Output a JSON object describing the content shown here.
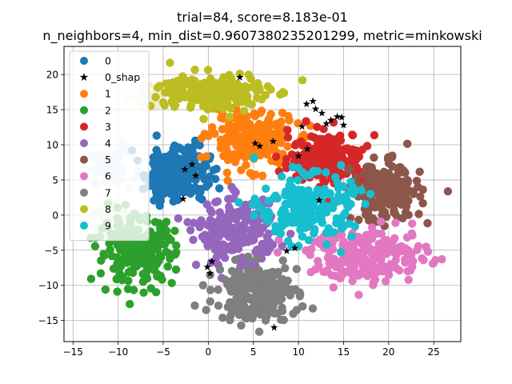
{
  "chart_data": {
    "type": "scatter",
    "title_line1": "trial=84, score=8.183e-01",
    "title_line2": "n_neighbors=4, min_dist=0.9607380235201299, metric=minkowski",
    "xlabel": "",
    "ylabel": "",
    "xlim": [
      -16,
      28
    ],
    "ylim": [
      -18,
      24
    ],
    "xticks": [
      -15,
      -10,
      -5,
      0,
      5,
      10,
      15,
      20,
      25
    ],
    "yticks": [
      -15,
      -10,
      -5,
      0,
      5,
      10,
      15,
      20
    ],
    "grid": true,
    "legend_position": "upper-left",
    "series": [
      {
        "name": "0",
        "marker": "circle",
        "color": "#1f77b4",
        "clusters": [
          {
            "cx": -3.5,
            "cy": 6.0,
            "sx": 2.6,
            "sy": 2.8,
            "n": 230
          }
        ]
      },
      {
        "name": "0_shap",
        "marker": "star",
        "color": "#000000",
        "points": [
          [
            -2.8,
            2.3
          ],
          [
            -2.6,
            6.5
          ],
          [
            -1.8,
            7.2
          ],
          [
            -1.4,
            5.6
          ],
          [
            -0.1,
            -7.4
          ],
          [
            0.2,
            -8.3
          ],
          [
            0.4,
            -6.6
          ],
          [
            3.5,
            19.6
          ],
          [
            5.2,
            10.2
          ],
          [
            5.7,
            9.8
          ],
          [
            7.2,
            10.5
          ],
          [
            7.3,
            -16.0
          ],
          [
            8.7,
            -5.1
          ],
          [
            9.6,
            -4.7
          ],
          [
            10.0,
            8.4
          ],
          [
            10.4,
            12.6
          ],
          [
            10.9,
            15.8
          ],
          [
            11.6,
            16.2
          ],
          [
            11.9,
            15.1
          ],
          [
            12.3,
            2.1
          ],
          [
            12.6,
            14.5
          ],
          [
            13.1,
            13.0
          ],
          [
            13.6,
            13.5
          ],
          [
            14.3,
            14.0
          ],
          [
            14.8,
            13.9
          ],
          [
            11.0,
            9.4
          ],
          [
            15.0,
            12.8
          ]
        ]
      },
      {
        "name": "1",
        "marker": "circle",
        "color": "#ff7f0e",
        "clusters": [
          {
            "cx": 4.8,
            "cy": 10.8,
            "sx": 3.2,
            "sy": 2.8,
            "n": 230
          }
        ]
      },
      {
        "name": "2",
        "marker": "circle",
        "color": "#2ca02c",
        "clusters": [
          {
            "cx": -8.0,
            "cy": -5.0,
            "sx": 3.0,
            "sy": 3.3,
            "n": 240
          }
        ]
      },
      {
        "name": "3",
        "marker": "circle",
        "color": "#d62728",
        "clusters": [
          {
            "cx": 13.2,
            "cy": 8.2,
            "sx": 3.0,
            "sy": 2.6,
            "n": 220
          }
        ]
      },
      {
        "name": "4",
        "marker": "circle",
        "color": "#9467bd",
        "clusters": [
          {
            "cx": 3.2,
            "cy": -2.5,
            "sx": 3.1,
            "sy": 3.3,
            "n": 230
          }
        ]
      },
      {
        "name": "5",
        "marker": "circle",
        "color": "#8c564b",
        "clusters": [
          {
            "cx": 19.8,
            "cy": 3.2,
            "sx": 2.7,
            "sy": 3.0,
            "n": 200
          }
        ]
      },
      {
        "name": "6",
        "marker": "circle",
        "color": "#e377c2",
        "clusters": [
          {
            "cx": 17.8,
            "cy": -5.8,
            "sx": 4.7,
            "sy": 2.7,
            "n": 230
          }
        ]
      },
      {
        "name": "7",
        "marker": "circle",
        "color": "#7f7f7f",
        "clusters": [
          {
            "cx": 5.5,
            "cy": -11.0,
            "sx": 3.2,
            "sy": 2.8,
            "n": 220
          }
        ]
      },
      {
        "name": "8",
        "marker": "circle",
        "color": "#bcbd22",
        "clusters": [
          {
            "cx": 0.5,
            "cy": 17.5,
            "sx": 4.3,
            "sy": 2.0,
            "n": 210
          }
        ]
      },
      {
        "name": "9",
        "marker": "circle",
        "color": "#17becf",
        "clusters": [
          {
            "cx": 11.0,
            "cy": 1.0,
            "sx": 3.6,
            "sy": 3.2,
            "n": 220
          }
        ]
      },
      {
        "name": "",
        "marker": "circle",
        "color": "#d6e6f4",
        "clusters": [
          {
            "cx": -10.8,
            "cy": 6.5,
            "sx": 1.8,
            "sy": 1.8,
            "n": 70
          }
        ]
      },
      {
        "name": "",
        "marker": "circle",
        "color": "#d5ecd5",
        "clusters": [
          {
            "cx": -10.5,
            "cy": -1.2,
            "sx": 1.2,
            "sy": 2.0,
            "n": 40
          }
        ]
      },
      {
        "name": "",
        "marker": "circle",
        "color": "#eeeed0",
        "clusters": [
          {
            "cx": -6.5,
            "cy": 16.8,
            "sx": 1.0,
            "sy": 1.3,
            "n": 30
          }
        ]
      }
    ]
  }
}
